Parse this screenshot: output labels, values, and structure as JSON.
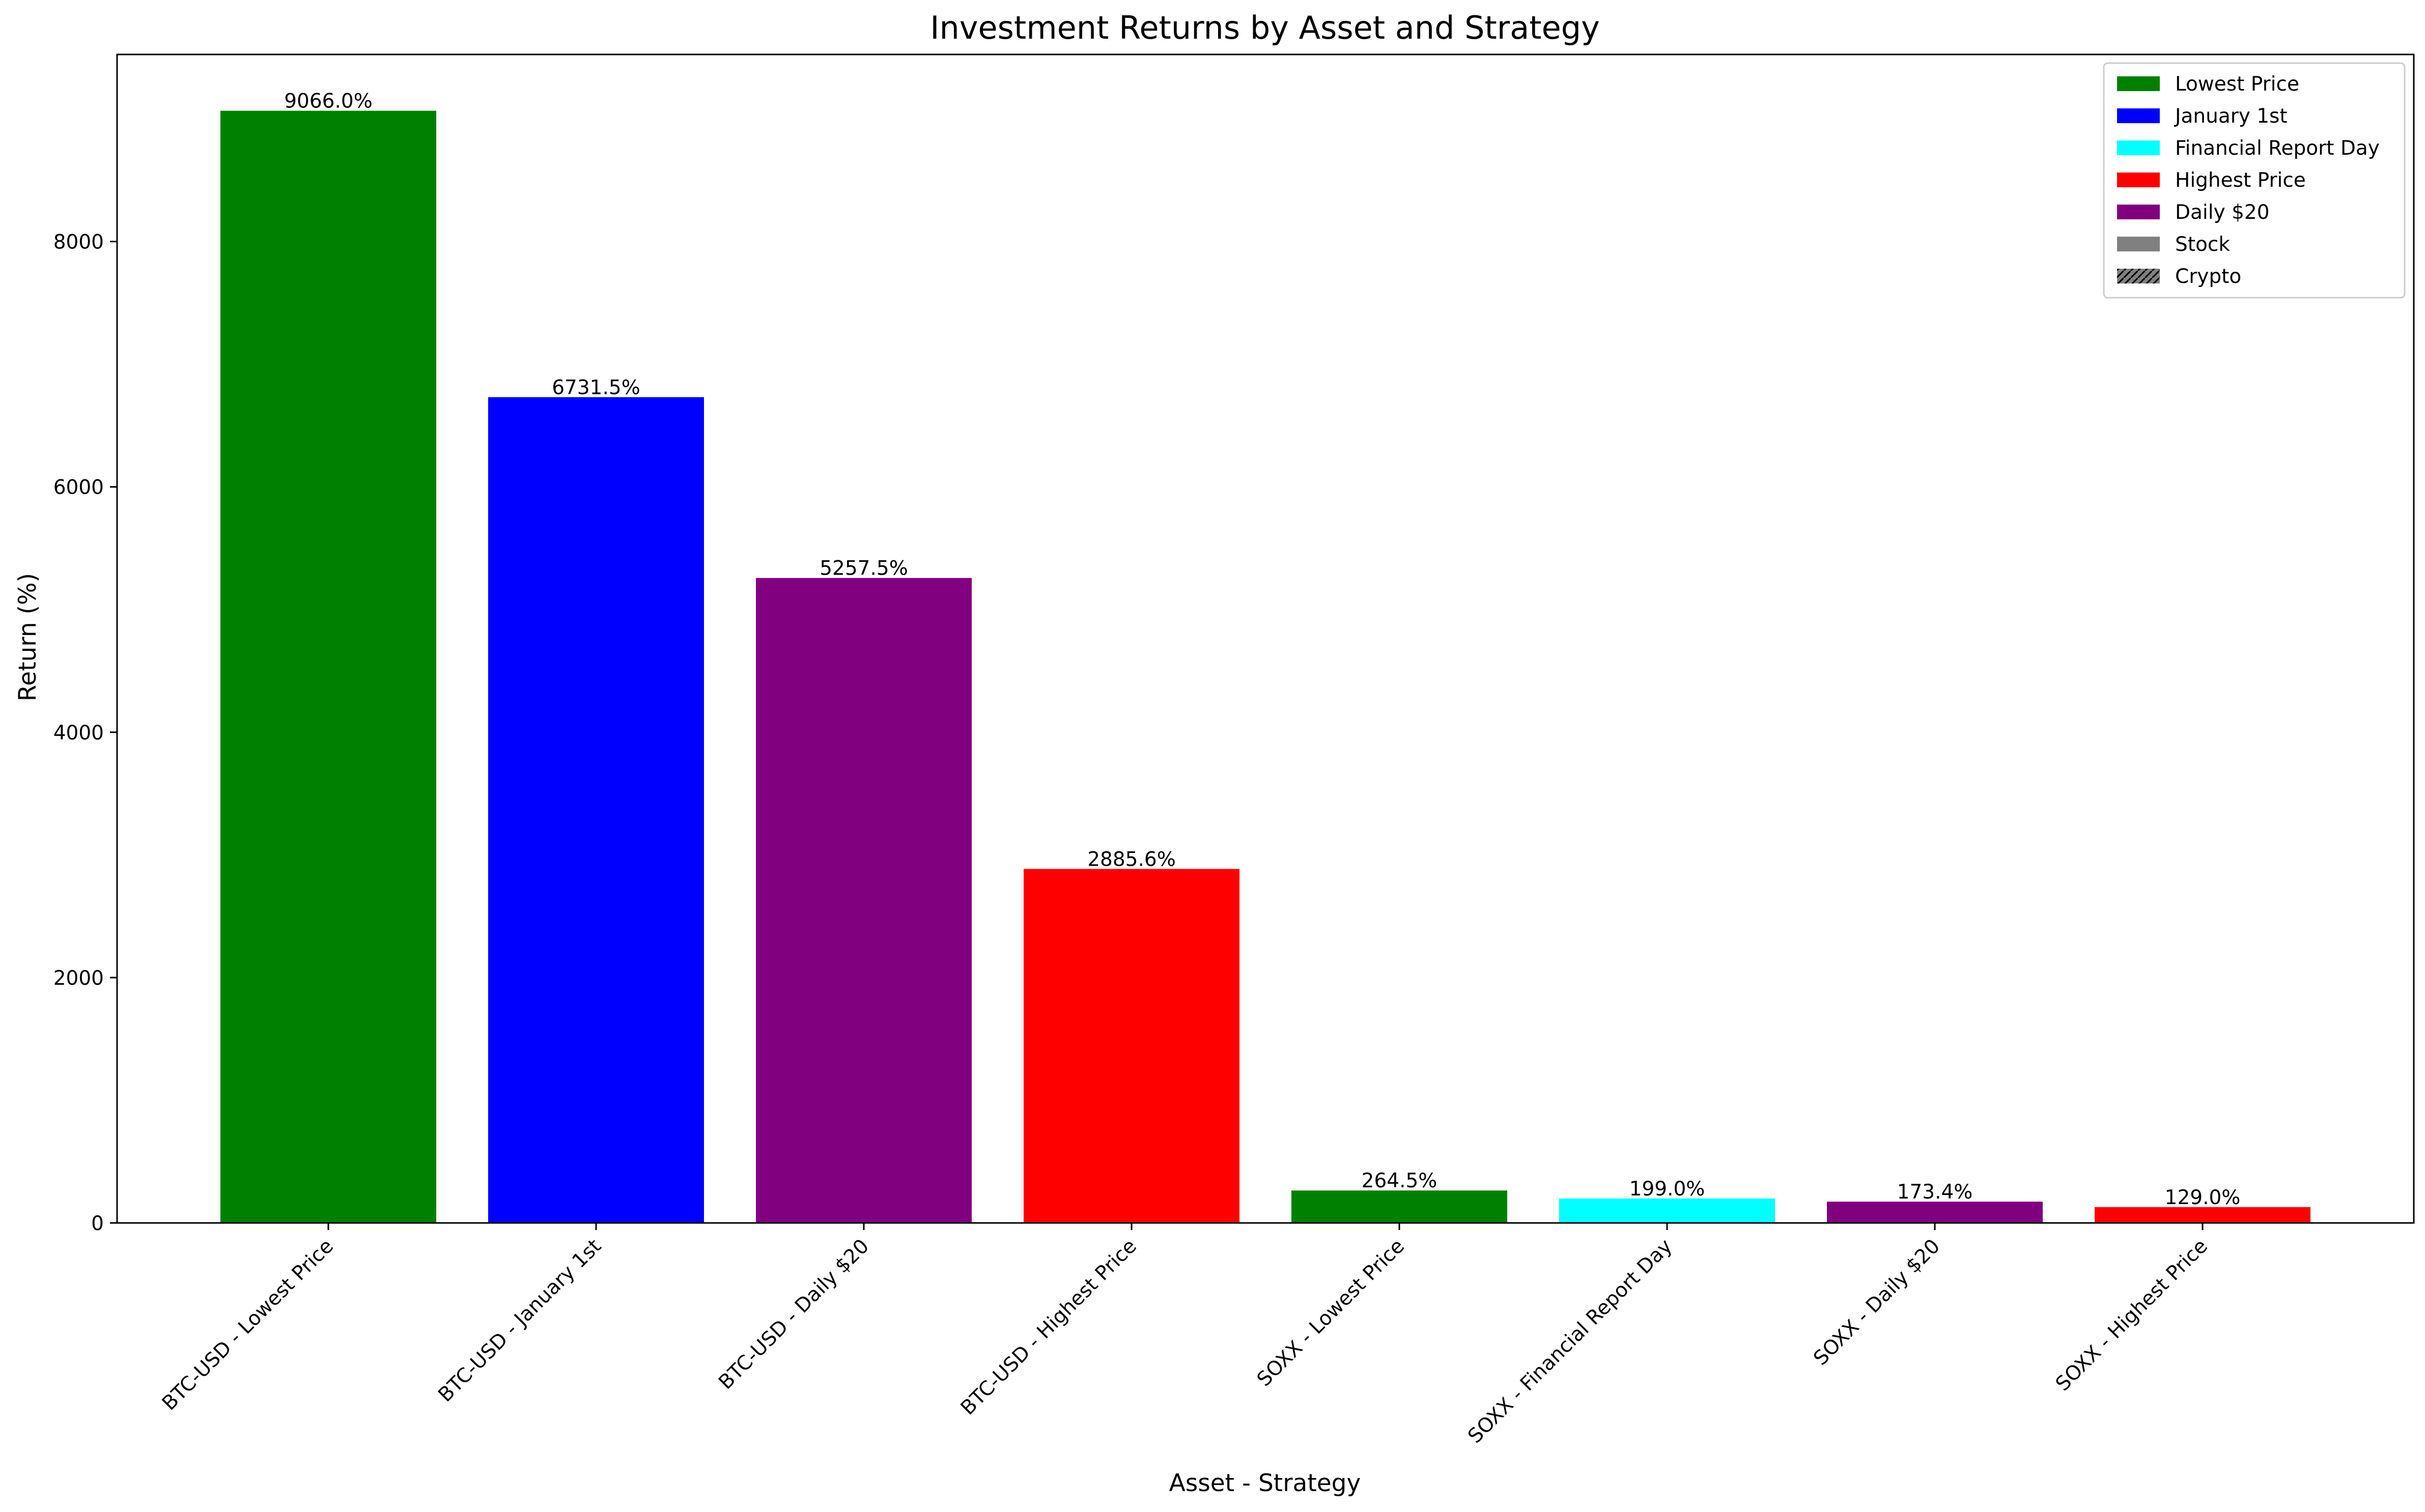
{
  "chart_data": {
    "type": "bar",
    "title": "Investment Returns by Asset and Strategy",
    "xlabel": "Asset - Strategy",
    "ylabel": "Return (%)",
    "ylim": [
      0,
      9525
    ],
    "yticks": [
      0,
      2000,
      4000,
      6000,
      8000
    ],
    "grid": false,
    "legend_position": "top-right",
    "categories": [
      "BTC-USD - Lowest Price",
      "BTC-USD - January 1st",
      "BTC-USD - Daily $20",
      "BTC-USD - Highest Price",
      "SOXX - Lowest Price",
      "SOXX - Financial Report Day",
      "SOXX - Daily $20",
      "SOXX - Highest Price"
    ],
    "values": [
      9066.0,
      6731.5,
      5257.5,
      2885.6,
      264.5,
      199.0,
      173.4,
      129.0
    ],
    "data_labels": [
      "9066.0%",
      "6731.5%",
      "5257.5%",
      "2885.6%",
      "264.5%",
      "199.0%",
      "173.4%",
      "129.0%"
    ],
    "bar_strategies": [
      "Lowest Price",
      "January 1st",
      "Daily $20",
      "Highest Price",
      "Lowest Price",
      "Financial Report Day",
      "Daily $20",
      "Highest Price"
    ],
    "legend": [
      {
        "label": "Lowest Price",
        "color": "#008000",
        "hatch": false
      },
      {
        "label": "January 1st",
        "color": "#0000ff",
        "hatch": false
      },
      {
        "label": "Financial Report Day",
        "color": "#00ffff",
        "hatch": false
      },
      {
        "label": "Highest Price",
        "color": "#ff0000",
        "hatch": false
      },
      {
        "label": "Daily $20",
        "color": "#800080",
        "hatch": false
      },
      {
        "label": "Stock",
        "color": "#808080",
        "hatch": false
      },
      {
        "label": "Crypto",
        "color": "#808080",
        "hatch": true
      }
    ]
  }
}
